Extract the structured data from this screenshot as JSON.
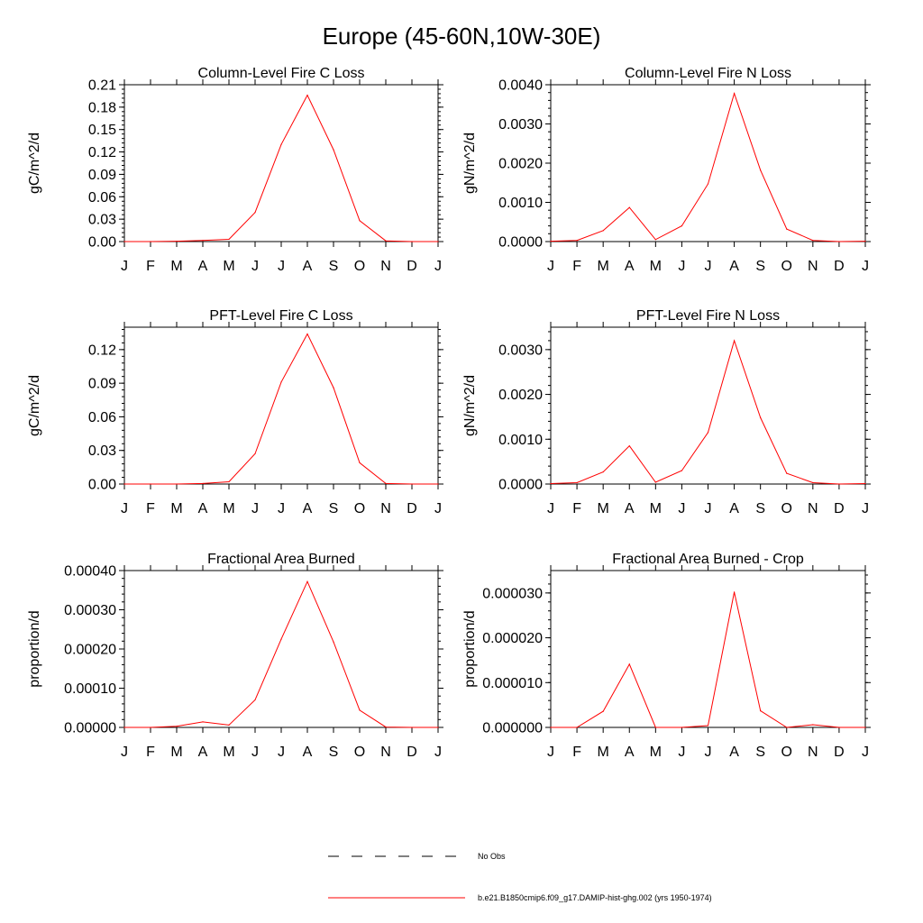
{
  "page": {
    "title": "Europe (45-60N,10W-30E)"
  },
  "legend": [
    {
      "label": "No Obs",
      "color": "#000000",
      "style": "dashed"
    },
    {
      "label": "b.e21.B1850cmip6.f09_g17.DAMIP-hist-ghg.002 (yrs 1950-1974)",
      "color": "#ff0000",
      "style": "solid"
    }
  ],
  "chart_data": [
    {
      "type": "line",
      "title": "Column-Level Fire C Loss",
      "ylabel": "gC/m^2/d",
      "ylim": [
        0,
        0.21
      ],
      "yticks": [
        0,
        0.03,
        0.06,
        0.09,
        0.12,
        0.15,
        0.18,
        0.21
      ],
      "ytick_labels": [
        "0.00",
        "0.03",
        "0.06",
        "0.09",
        "0.12",
        "0.15",
        "0.18",
        "0.21"
      ],
      "x": [
        "J",
        "F",
        "M",
        "A",
        "M",
        "J",
        "J",
        "A",
        "S",
        "O",
        "N",
        "D",
        "J"
      ],
      "series": [
        {
          "color": "#ff0000",
          "values": [
            0.0,
            0.0,
            0.0005,
            0.0015,
            0.003,
            0.039,
            0.13,
            0.196,
            0.123,
            0.028,
            0.001,
            0.0,
            0.0
          ]
        }
      ]
    },
    {
      "type": "line",
      "title": "Column-Level Fire N Loss",
      "ylabel": "gN/m^2/d",
      "ylim": [
        0,
        0.004
      ],
      "yticks": [
        0,
        0.001,
        0.002,
        0.003,
        0.004
      ],
      "ytick_labels": [
        "0.0000",
        "0.0010",
        "0.0020",
        "0.0030",
        "0.0040"
      ],
      "x": [
        "J",
        "F",
        "M",
        "A",
        "M",
        "J",
        "J",
        "A",
        "S",
        "O",
        "N",
        "D",
        "J"
      ],
      "series": [
        {
          "color": "#ff0000",
          "values": [
            1e-05,
            3e-05,
            0.00028,
            0.00087,
            5e-05,
            0.0004,
            0.00147,
            0.00378,
            0.00182,
            0.00032,
            3e-05,
            0.0,
            1e-05
          ]
        }
      ]
    },
    {
      "type": "line",
      "title": "PFT-Level Fire C Loss",
      "ylabel": "gC/m^2/d",
      "ylim": [
        0,
        0.14
      ],
      "yticks": [
        0,
        0.03,
        0.06,
        0.09,
        0.12
      ],
      "ytick_labels": [
        "0.00",
        "0.03",
        "0.06",
        "0.09",
        "0.12"
      ],
      "x": [
        "J",
        "F",
        "M",
        "A",
        "M",
        "J",
        "J",
        "A",
        "S",
        "O",
        "N",
        "D",
        "J"
      ],
      "series": [
        {
          "color": "#ff0000",
          "values": [
            0.0,
            0.0,
            0.0,
            0.0005,
            0.002,
            0.027,
            0.091,
            0.134,
            0.086,
            0.019,
            0.0005,
            0.0,
            0.0
          ]
        }
      ]
    },
    {
      "type": "line",
      "title": "PFT-Level Fire N Loss",
      "ylabel": "gN/m^2/d",
      "ylim": [
        0,
        0.0035
      ],
      "yticks": [
        0,
        0.001,
        0.002,
        0.003
      ],
      "ytick_labels": [
        "0.0000",
        "0.0010",
        "0.0020",
        "0.0030"
      ],
      "x": [
        "J",
        "F",
        "M",
        "A",
        "M",
        "J",
        "J",
        "A",
        "S",
        "O",
        "N",
        "D",
        "J"
      ],
      "series": [
        {
          "color": "#ff0000",
          "values": [
            1e-05,
            3e-05,
            0.00027,
            0.00085,
            4e-05,
            0.0003,
            0.00115,
            0.0032,
            0.00148,
            0.00024,
            3e-05,
            0.0,
            1e-05
          ]
        }
      ]
    },
    {
      "type": "line",
      "title": "Fractional Area Burned",
      "ylabel": "proportion/d",
      "ylim": [
        0,
        0.0004
      ],
      "yticks": [
        0,
        0.0001,
        0.0002,
        0.0003,
        0.0004
      ],
      "ytick_labels": [
        "0.00000",
        "0.00010",
        "0.00020",
        "0.00030",
        "0.00040"
      ],
      "x": [
        "J",
        "F",
        "M",
        "A",
        "M",
        "J",
        "J",
        "A",
        "S",
        "O",
        "N",
        "D",
        "J"
      ],
      "series": [
        {
          "color": "#ff0000",
          "values": [
            0.0,
            0.0,
            3e-06,
            1.4e-05,
            6e-06,
            7e-05,
            0.000225,
            0.000372,
            0.000218,
            4.4e-05,
            1e-06,
            0.0,
            0.0
          ]
        }
      ]
    },
    {
      "type": "line",
      "title": "Fractional Area Burned - Crop",
      "ylabel": "proportion/d",
      "ylim": [
        0,
        3.5e-05
      ],
      "yticks": [
        0,
        1e-05,
        2e-05,
        3e-05
      ],
      "ytick_labels": [
        "0.000000",
        "0.000010",
        "0.000020",
        "0.000030"
      ],
      "x": [
        "J",
        "F",
        "M",
        "A",
        "M",
        "J",
        "J",
        "A",
        "S",
        "O",
        "N",
        "D",
        "J"
      ],
      "series": [
        {
          "color": "#ff0000",
          "values": [
            0.0,
            0.0,
            3.6e-06,
            1.41e-05,
            0.0,
            0.0,
            4e-07,
            3.02e-05,
            3.7e-06,
            0.0,
            6e-07,
            0.0,
            0.0
          ]
        }
      ]
    }
  ]
}
